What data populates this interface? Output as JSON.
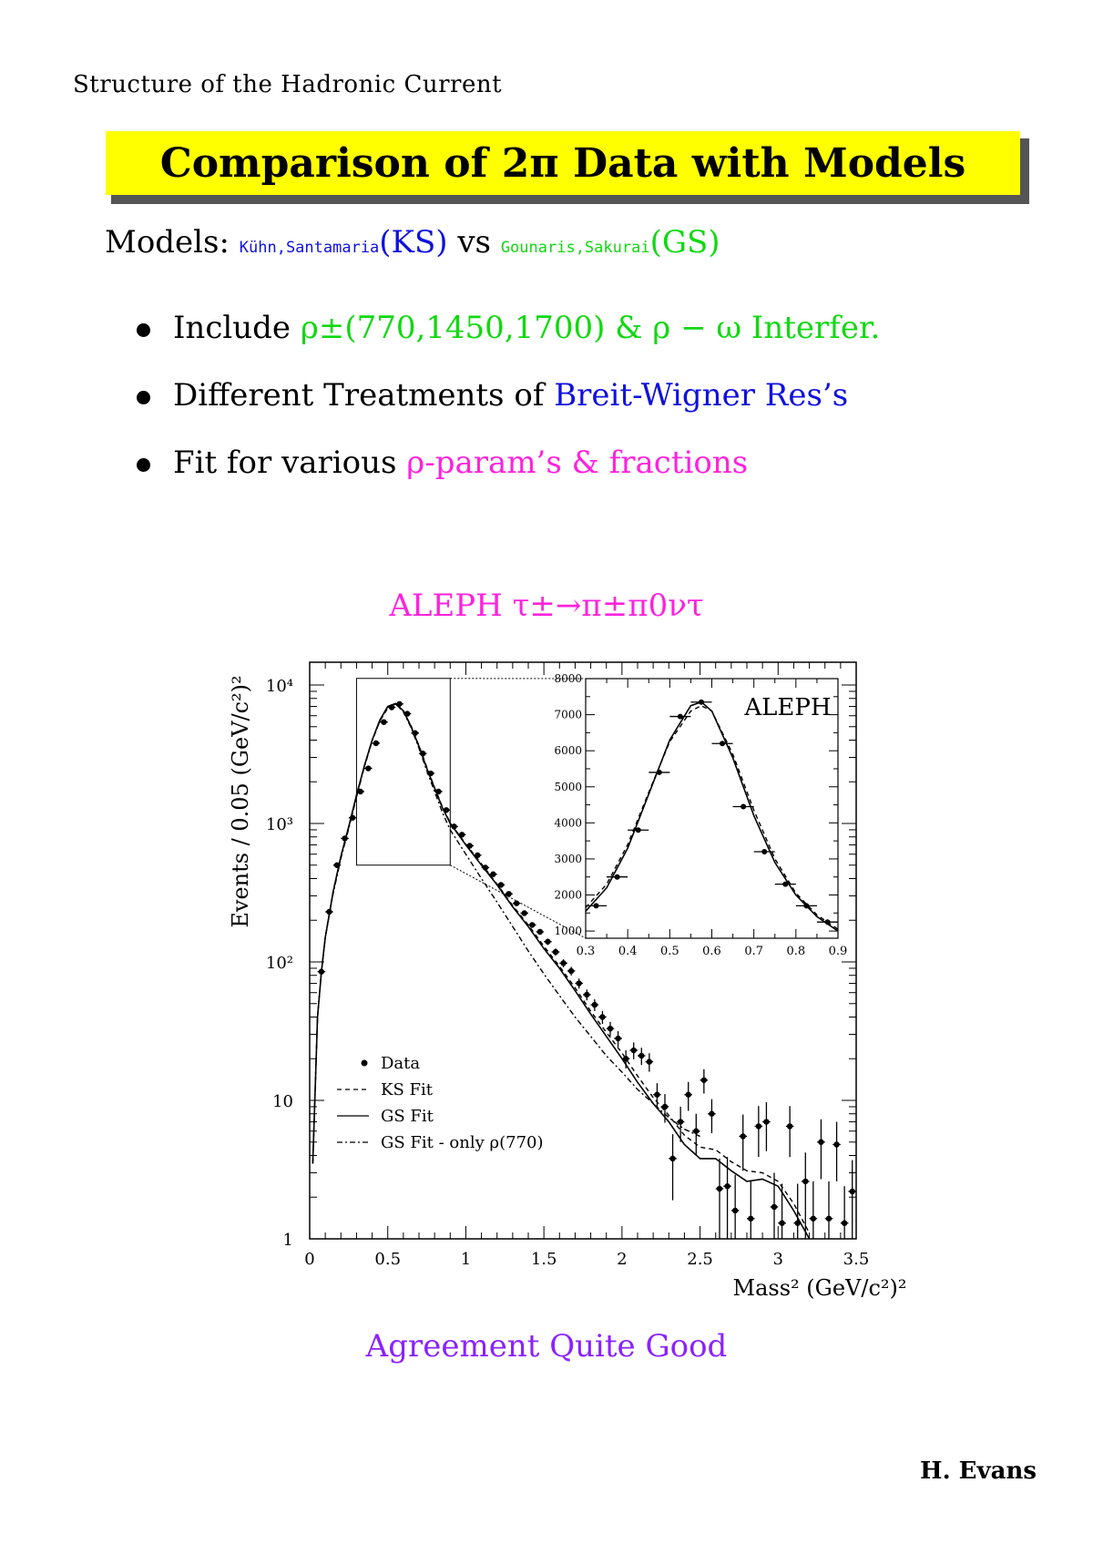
{
  "header": {
    "section": "Structure of the Hadronic Current"
  },
  "title": {
    "text": "Comparison of 2π Data with Models"
  },
  "models_line": {
    "label": "Models:",
    "ks_authors": "Kühn,Santamaria",
    "ks_abbr": "(KS)",
    "vs": "vs",
    "gs_authors": "Gounaris,Sakurai",
    "gs_abbr": "(GS)"
  },
  "bullets": [
    {
      "text": "Include ",
      "highlight": "ρ±(770,1450,1700) & ρ − ω Interfer.",
      "color": "#11d811"
    },
    {
      "text": "Different Treatments of ",
      "highlight": "Breit-Wigner Res’s",
      "color": "#1010e0"
    },
    {
      "text": "Fit for various ",
      "highlight": "ρ-param’s & fractions",
      "color": "#ff22dd"
    }
  ],
  "chart_heading": "ALEPH τ±→π±π0ντ",
  "caption": "Agreement Quite Good",
  "author": "H. Evans",
  "colors": {
    "title_bg": "#ffff00",
    "green": "#11d811",
    "blue": "#1010e0",
    "magenta": "#ff22dd",
    "purple": "#8a22ff"
  },
  "chart_data": [
    {
      "type": "scatter",
      "title": "",
      "xlabel": "Mass² (GeV/c²)²",
      "ylabel": "Events / 0.05 (GeV/c²)²",
      "xlim": [
        0,
        3.5
      ],
      "ylim": [
        1,
        12000
      ],
      "yscale": "log",
      "x_ticks": [
        "0",
        "0.5",
        "1",
        "1.5",
        "2",
        "2.5",
        "3",
        "3.5"
      ],
      "y_ticks": [
        "1",
        "10",
        "10²",
        "10³",
        "10⁴"
      ],
      "legend_position": "bottom-left",
      "legend": [
        "Data",
        "KS Fit",
        "GS Fit",
        "GS Fit - only ρ(770)"
      ],
      "series": [
        {
          "name": "Data",
          "x": [
            0.075,
            0.125,
            0.175,
            0.225,
            0.275,
            0.325,
            0.375,
            0.425,
            0.475,
            0.525,
            0.575,
            0.625,
            0.675,
            0.725,
            0.775,
            0.825,
            0.875,
            0.925,
            0.975,
            1.025,
            1.075,
            1.125,
            1.175,
            1.225,
            1.275,
            1.325,
            1.375,
            1.425,
            1.475,
            1.525,
            1.575,
            1.625,
            1.675,
            1.725,
            1.775,
            1.825,
            1.875,
            1.925,
            1.975,
            2.025,
            2.075,
            2.125,
            2.175,
            2.225,
            2.275,
            2.325,
            2.375,
            2.425,
            2.475,
            2.525,
            2.575,
            2.625,
            2.675,
            2.725,
            2.775,
            2.825,
            2.875,
            2.925,
            2.975,
            3.025,
            3.075,
            3.125,
            3.175,
            3.225,
            3.275,
            3.325,
            3.375,
            3.425,
            3.475
          ],
          "y": [
            85,
            230,
            500,
            780,
            1100,
            1700,
            2500,
            3800,
            5400,
            6900,
            7300,
            6200,
            4500,
            3200,
            2300,
            1700,
            1250,
            950,
            830,
            690,
            590,
            480,
            430,
            360,
            310,
            265,
            225,
            185,
            165,
            140,
            118,
            98,
            86,
            70,
            58,
            49,
            40,
            33,
            28,
            20,
            23,
            21,
            19,
            11,
            9,
            3.8,
            7,
            11,
            6,
            14,
            8,
            2.3,
            2.4,
            1.6,
            5.5,
            1.4,
            6.5,
            7,
            1.7,
            1.3,
            6.5,
            1.3,
            2.6,
            1.4,
            5,
            1.4,
            4.8,
            1.3,
            2.2
          ],
          "y_error": [
            5,
            9,
            14,
            18,
            22,
            27,
            33,
            40,
            48,
            54,
            56,
            52,
            44,
            37,
            31,
            27,
            23,
            20,
            19,
            17,
            16,
            14,
            13,
            12,
            11,
            10,
            9,
            8.5,
            8,
            7.5,
            7,
            6.5,
            6.2,
            5.8,
            5.2,
            4.8,
            4.3,
            3.9,
            3.6,
            3.0,
            3.2,
            3.0,
            2.9,
            2.3,
            2.1,
            1.9,
            2.0,
            2.6,
            2.0,
            2.8,
            2.2,
            1.5,
            1.5,
            1.3,
            2.4,
            1.2,
            2.6,
            2.7,
            1.3,
            1.2,
            2.6,
            1.2,
            1.6,
            1.2,
            2.3,
            1.2,
            2.2,
            1.1,
            1.5
          ]
        },
        {
          "name": "GS Fit",
          "x": [
            0.02,
            0.05,
            0.075,
            0.1,
            0.15,
            0.2,
            0.25,
            0.3,
            0.35,
            0.4,
            0.45,
            0.5,
            0.55,
            0.6,
            0.65,
            0.7,
            0.75,
            0.8,
            0.85,
            0.9,
            1.0,
            1.1,
            1.2,
            1.3,
            1.4,
            1.5,
            1.6,
            1.7,
            1.8,
            1.9,
            2.0,
            2.1,
            2.2,
            2.3,
            2.4,
            2.5,
            2.6,
            2.7,
            2.8,
            2.9,
            3.0,
            3.1,
            3.2
          ],
          "y": [
            3.5,
            40,
            85,
            150,
            320,
            580,
            950,
            1600,
            2600,
            4000,
            5600,
            7000,
            7350,
            6500,
            5000,
            3600,
            2500,
            1800,
            1300,
            1000,
            700,
            500,
            360,
            250,
            180,
            125,
            90,
            62,
            42,
            29,
            20,
            13.5,
            9.5,
            7,
            4.8,
            3.8,
            3.8,
            3.1,
            2.6,
            2.7,
            2.4,
            1.6,
            1.0
          ]
        },
        {
          "name": "KS Fit",
          "x": [
            0.02,
            0.05,
            0.075,
            0.1,
            0.15,
            0.2,
            0.25,
            0.3,
            0.35,
            0.4,
            0.45,
            0.5,
            0.55,
            0.6,
            0.65,
            0.7,
            0.75,
            0.8,
            0.85,
            0.9,
            1.0,
            1.1,
            1.2,
            1.3,
            1.4,
            1.5,
            1.6,
            1.7,
            1.8,
            1.9,
            2.0,
            2.1,
            2.2,
            2.3,
            2.4,
            2.5,
            2.6,
            2.7,
            2.8,
            2.9,
            3.0,
            3.1,
            3.2
          ],
          "y": [
            3.5,
            40,
            85,
            150,
            320,
            580,
            950,
            1600,
            2600,
            4000,
            5500,
            6800,
            7250,
            6500,
            5050,
            3650,
            2550,
            1820,
            1320,
            1010,
            710,
            510,
            365,
            255,
            185,
            130,
            93,
            65,
            44,
            31,
            22,
            15,
            10.5,
            7.8,
            5.6,
            4.6,
            4.4,
            3.6,
            3.1,
            3.0,
            2.6,
            1.8,
            1.1
          ]
        },
        {
          "name": "GS Fit - only ρ(770)",
          "x": [
            0.02,
            0.05,
            0.075,
            0.1,
            0.15,
            0.2,
            0.25,
            0.3,
            0.35,
            0.4,
            0.45,
            0.5,
            0.55,
            0.6,
            0.65,
            0.7,
            0.75,
            0.8,
            0.85,
            0.9,
            1.0,
            1.1,
            1.2,
            1.3,
            1.4,
            1.5,
            1.6,
            1.7,
            1.8,
            1.9,
            2.0,
            2.1,
            2.2,
            2.3,
            2.4,
            2.5
          ],
          "y": [
            3.5,
            40,
            85,
            150,
            310,
            560,
            920,
            1550,
            2550,
            3950,
            5500,
            6900,
            7300,
            6400,
            4900,
            3500,
            2400,
            1700,
            1200,
            900,
            600,
            400,
            270,
            180,
            120,
            82,
            57,
            40,
            29,
            21,
            16,
            12,
            9.5,
            7.5,
            6.2,
            5.5
          ]
        }
      ]
    },
    {
      "type": "scatter",
      "title": "ALEPH",
      "xlim": [
        0.3,
        0.9
      ],
      "ylim": [
        800,
        8000
      ],
      "x_ticks": [
        "0.3",
        "0.4",
        "0.5",
        "0.6",
        "0.7",
        "0.8",
        "0.9"
      ],
      "y_ticks": [
        "1000",
        "2000",
        "3000",
        "4000",
        "5000",
        "6000",
        "7000",
        "8000"
      ],
      "series": [
        {
          "name": "Data",
          "x": [
            0.325,
            0.375,
            0.425,
            0.475,
            0.525,
            0.575,
            0.625,
            0.675,
            0.725,
            0.775,
            0.825,
            0.875
          ],
          "y": [
            1700,
            2500,
            3800,
            5400,
            6950,
            7350,
            6200,
            4450,
            3200,
            2300,
            1700,
            1250
          ]
        },
        {
          "name": "GS Fit",
          "x": [
            0.3,
            0.35,
            0.4,
            0.45,
            0.5,
            0.55,
            0.575,
            0.6,
            0.65,
            0.7,
            0.75,
            0.8,
            0.85,
            0.9
          ],
          "y": [
            1550,
            2200,
            3300,
            4800,
            6300,
            7250,
            7350,
            7100,
            5800,
            4200,
            2900,
            2000,
            1400,
            1000
          ]
        },
        {
          "name": "KS Fit",
          "x": [
            0.3,
            0.35,
            0.4,
            0.45,
            0.5,
            0.55,
            0.575,
            0.6,
            0.65,
            0.7,
            0.75,
            0.8,
            0.85,
            0.9
          ],
          "y": [
            1650,
            2300,
            3400,
            4850,
            6250,
            7100,
            7250,
            7100,
            5900,
            4350,
            3000,
            2050,
            1450,
            1050
          ]
        }
      ]
    }
  ]
}
